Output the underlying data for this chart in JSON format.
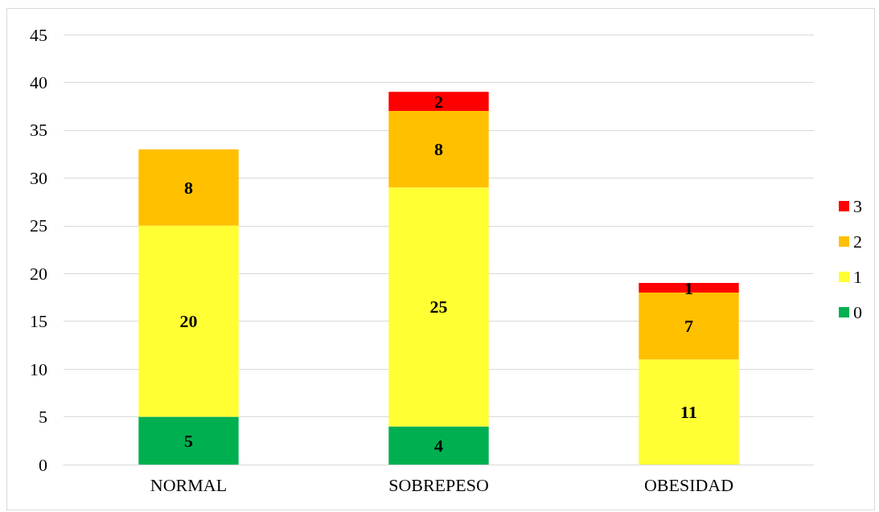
{
  "chart_data": {
    "type": "bar",
    "stacked": true,
    "categories": [
      "NORMAL",
      "SOBREPESO",
      "OBESIDAD"
    ],
    "series": [
      {
        "name": "0",
        "color": "#00b050",
        "values": [
          5,
          4,
          null
        ]
      },
      {
        "name": "1",
        "color": "#ffff33",
        "values": [
          20,
          25,
          11
        ]
      },
      {
        "name": "2",
        "color": "#ffc000",
        "values": [
          8,
          8,
          7
        ]
      },
      {
        "name": "3",
        "color": "#ff0000",
        "values": [
          null,
          2,
          1
        ]
      }
    ],
    "ylim": [
      0,
      45
    ],
    "yticks": [
      0,
      5,
      10,
      15,
      20,
      25,
      30,
      35,
      40,
      45
    ],
    "grid": "y",
    "legend": "right",
    "data_labels": true
  }
}
